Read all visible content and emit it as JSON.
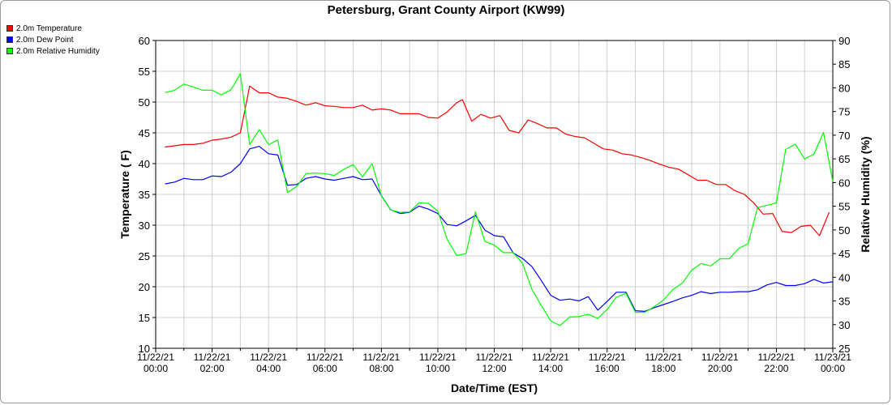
{
  "chart_data": {
    "type": "line",
    "title": "Petersburg, Grant County Airport (KW99)",
    "xlabel": "Date/Time (EST)",
    "ylabel_left": "Temperature ( F)",
    "ylabel_right": "Relative Humidity (%)",
    "ylim_left": [
      10,
      60
    ],
    "ylim_right": [
      25,
      90
    ],
    "yticks_left": [
      10,
      15,
      20,
      25,
      30,
      35,
      40,
      45,
      50,
      55,
      60
    ],
    "yticks_right": [
      25,
      30,
      35,
      40,
      45,
      50,
      55,
      60,
      65,
      70,
      75,
      80,
      85,
      90
    ],
    "xlim_hours": [
      0,
      24
    ],
    "x_ticks": [
      {
        "date": "11/22/21",
        "time": "00:00"
      },
      {
        "date": "11/22/21",
        "time": "02:00"
      },
      {
        "date": "11/22/21",
        "time": "04:00"
      },
      {
        "date": "11/22/21",
        "time": "06:00"
      },
      {
        "date": "11/22/21",
        "time": "08:00"
      },
      {
        "date": "11/22/21",
        "time": "10:00"
      },
      {
        "date": "11/22/21",
        "time": "12:00"
      },
      {
        "date": "11/22/21",
        "time": "14:00"
      },
      {
        "date": "11/22/21",
        "time": "16:00"
      },
      {
        "date": "11/22/21",
        "time": "18:00"
      },
      {
        "date": "11/22/21",
        "time": "20:00"
      },
      {
        "date": "11/22/21",
        "time": "22:00"
      },
      {
        "date": "11/23/21",
        "time": "00:00"
      }
    ],
    "grid": true,
    "legend_position": "top-left",
    "series": [
      {
        "name": "2.0m Temperature",
        "color": "#ff0000",
        "axis": "left",
        "x": [
          0.33,
          0.67,
          1.0,
          1.33,
          1.67,
          2.0,
          2.33,
          2.67,
          3.0,
          3.33,
          3.67,
          4.0,
          4.33,
          4.67,
          5.0,
          5.33,
          5.67,
          6.0,
          6.33,
          6.67,
          7.0,
          7.33,
          7.67,
          8.0,
          8.33,
          8.67,
          9.0,
          9.33,
          9.67,
          10.0,
          10.33,
          10.67,
          10.87,
          11.2,
          11.53,
          11.87,
          12.2,
          12.53,
          12.87,
          13.2,
          13.53,
          13.87,
          14.2,
          14.53,
          14.87,
          15.2,
          15.53,
          15.87,
          16.2,
          16.53,
          16.87,
          17.2,
          17.53,
          17.87,
          18.2,
          18.53,
          18.87,
          19.2,
          19.53,
          19.87,
          20.2,
          20.53,
          20.87,
          21.2,
          21.53,
          21.87,
          22.2,
          22.53,
          22.87,
          23.2,
          23.53,
          23.87
        ],
        "y": [
          42.7,
          42.9,
          43.1,
          43.1,
          43.3,
          43.8,
          44.0,
          44.3,
          45.0,
          52.6,
          51.5,
          51.5,
          50.8,
          50.6,
          50.1,
          49.5,
          49.9,
          49.4,
          49.3,
          49.1,
          49.1,
          49.5,
          48.7,
          48.9,
          48.7,
          48.1,
          48.1,
          48.1,
          47.5,
          47.4,
          48.4,
          49.9,
          50.4,
          46.9,
          48.0,
          47.4,
          47.8,
          45.4,
          45.0,
          47.1,
          46.5,
          45.8,
          45.8,
          44.8,
          44.4,
          44.2,
          43.3,
          42.4,
          42.2,
          41.6,
          41.4,
          41.0,
          40.5,
          39.9,
          39.4,
          39.1,
          38.2,
          37.3,
          37.3,
          36.6,
          36.6,
          35.6,
          35.0,
          33.6,
          31.8,
          31.9,
          29.0,
          28.8,
          29.8,
          30.0,
          28.3,
          32.1
        ]
      },
      {
        "name": "2.0m Dew Point",
        "color": "#0000ff",
        "axis": "left",
        "x": [
          0.33,
          0.67,
          1.0,
          1.33,
          1.67,
          2.0,
          2.33,
          2.67,
          3.0,
          3.33,
          3.67,
          4.0,
          4.33,
          4.67,
          5.0,
          5.33,
          5.67,
          6.0,
          6.33,
          6.67,
          7.0,
          7.33,
          7.67,
          8.0,
          8.33,
          8.67,
          9.0,
          9.33,
          9.67,
          10.0,
          10.33,
          10.67,
          11.0,
          11.33,
          11.67,
          12.0,
          12.33,
          12.67,
          13.0,
          13.33,
          13.67,
          14.0,
          14.33,
          14.67,
          15.0,
          15.33,
          15.67,
          16.0,
          16.33,
          16.67,
          17.0,
          17.33,
          17.67,
          18.0,
          18.33,
          18.67,
          19.0,
          19.33,
          19.67,
          20.0,
          20.33,
          20.67,
          21.0,
          21.33,
          21.67,
          22.0,
          22.33,
          22.67,
          23.0,
          23.33,
          23.67,
          24.0
        ],
        "y": [
          36.7,
          37.0,
          37.6,
          37.4,
          37.4,
          38.0,
          37.9,
          38.6,
          40.0,
          42.4,
          42.8,
          41.6,
          41.4,
          36.5,
          36.6,
          37.6,
          37.9,
          37.5,
          37.3,
          37.6,
          37.9,
          37.4,
          37.5,
          34.8,
          32.5,
          31.9,
          32.1,
          33.1,
          32.6,
          31.9,
          30.1,
          29.9,
          30.7,
          31.6,
          29.2,
          28.3,
          28.1,
          25.5,
          24.6,
          23.3,
          21.0,
          18.6,
          17.8,
          18.0,
          17.7,
          18.4,
          16.2,
          17.6,
          19.1,
          19.1,
          16.1,
          16.0,
          16.6,
          17.1,
          17.6,
          18.2,
          18.6,
          19.2,
          18.9,
          19.1,
          19.1,
          19.2,
          19.2,
          19.5,
          20.3,
          20.7,
          20.2,
          20.2,
          20.5,
          21.2,
          20.6,
          20.8
        ]
      },
      {
        "name": "2.0m Relative Humidity",
        "color": "#00ff00",
        "axis": "right",
        "x": [
          0.33,
          0.67,
          1.0,
          1.33,
          1.67,
          2.0,
          2.33,
          2.67,
          3.0,
          3.33,
          3.67,
          4.0,
          4.33,
          4.67,
          5.0,
          5.33,
          5.67,
          6.0,
          6.33,
          6.67,
          7.0,
          7.33,
          7.67,
          8.0,
          8.33,
          8.67,
          9.0,
          9.33,
          9.67,
          10.0,
          10.33,
          10.67,
          11.0,
          11.33,
          11.67,
          12.0,
          12.33,
          12.67,
          13.0,
          13.33,
          13.67,
          14.0,
          14.33,
          14.67,
          15.0,
          15.33,
          15.67,
          16.0,
          16.33,
          16.67,
          17.0,
          17.33,
          17.67,
          18.0,
          18.33,
          18.67,
          19.0,
          19.33,
          19.67,
          20.0,
          20.33,
          20.67,
          21.0,
          21.33,
          21.67,
          22.0,
          22.33,
          22.67,
          23.0,
          23.33,
          23.67,
          24.0
        ],
        "y": [
          79,
          79.5,
          80.8,
          80.2,
          79.5,
          79.5,
          78.5,
          79.6,
          83,
          68,
          71.2,
          68,
          69,
          57.9,
          59.2,
          61.9,
          62,
          61.9,
          61.5,
          62.8,
          63.8,
          61.2,
          64,
          57.2,
          54.2,
          53.7,
          53.8,
          55.7,
          55.6,
          54,
          48,
          44.6,
          45,
          53.8,
          47.6,
          46.8,
          45.2,
          45.2,
          43,
          37.5,
          34,
          30.8,
          29.8,
          31.6,
          31.7,
          32.2,
          31.3,
          33.2,
          35.8,
          36.6,
          32.6,
          32.6,
          33.8,
          35.2,
          37.4,
          38.8,
          41.5,
          42.9,
          42.4,
          43.9,
          43.9,
          46.1,
          47.1,
          54.7,
          55.2,
          55.7,
          67,
          68.1,
          65,
          66,
          70.6,
          60.2
        ]
      }
    ]
  }
}
